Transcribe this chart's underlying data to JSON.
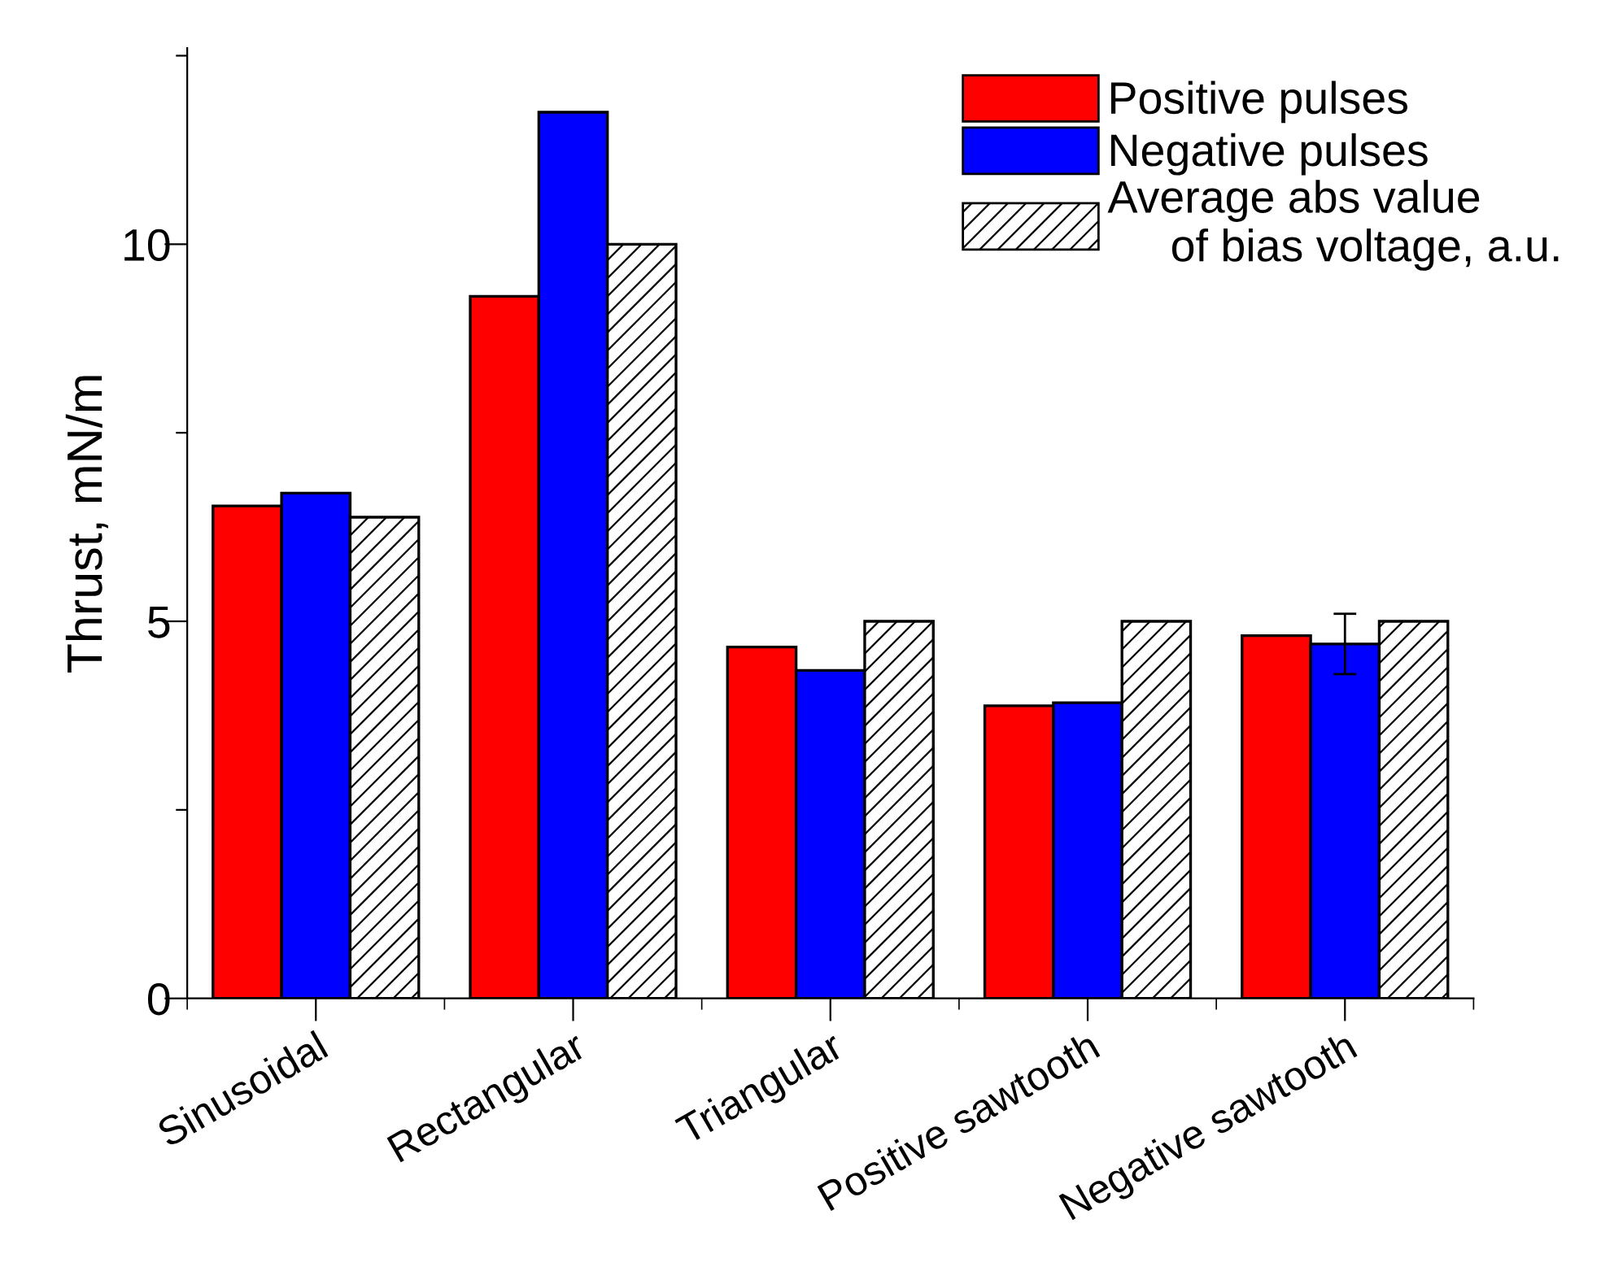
{
  "chart_data": {
    "type": "bar",
    "ylabel": "Thrust, mN/m",
    "categories": [
      "Sinusoidal",
      "Rectangular",
      "Triangular",
      "Positive sawtooth",
      "Negative sawtooth"
    ],
    "series": [
      {
        "name": "Positive pulses",
        "color": "#ff0000",
        "values": [
          6.53,
          9.31,
          4.66,
          3.88,
          4.81
        ]
      },
      {
        "name": "Negative pulses",
        "color": "#0000ff",
        "values": [
          6.7,
          11.75,
          4.35,
          3.92,
          4.7
        ],
        "errors": [
          null,
          null,
          null,
          null,
          0.4
        ]
      },
      {
        "name": "Average abs value\n     of bias voltage, a.u.",
        "color": "#000000",
        "values": [
          6.38,
          10.0,
          5.0,
          5.0,
          5.0
        ]
      }
    ],
    "ylim": [
      0,
      12.6
    ],
    "yticks": [
      0,
      {
        "value": 2.5,
        "label": null
      },
      5,
      {
        "value": 7.5,
        "label": null
      },
      10,
      {
        "value": 12.5,
        "label": null
      }
    ],
    "grid": false,
    "legend": "top right"
  }
}
